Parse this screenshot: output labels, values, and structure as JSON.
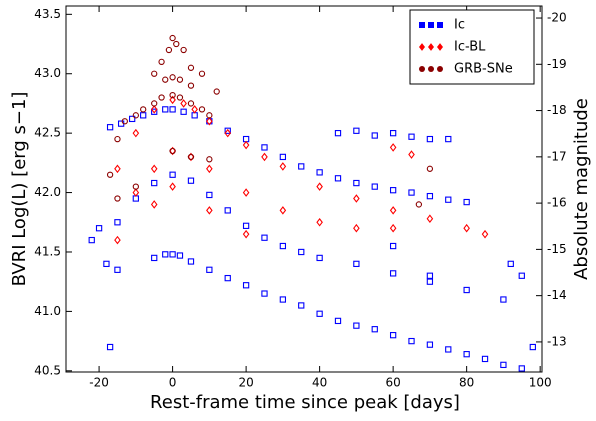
{
  "chart_data": {
    "type": "scatter",
    "xlabel": "Rest-frame time since peak [days]",
    "ylabel": "BVRI Log(L) [erg s−1]",
    "y2label": "Absolute magnitude",
    "xlim": [
      -29,
      100.5
    ],
    "xticks": [
      -20,
      0,
      20,
      40,
      60,
      80,
      100
    ],
    "ylim": [
      40.49,
      43.57
    ],
    "yticks": [
      40.5,
      {
        "value": 41,
        "label": "41.0"
      },
      41.5,
      {
        "value": 42,
        "label": "42.0"
      },
      42.5,
      {
        "value": 43,
        "label": "43.0"
      },
      43.5
    ],
    "y2lim": [
      -12.35,
      -20.26
    ],
    "y2ticks": [
      -13,
      -14,
      -15,
      -16,
      -17,
      -18,
      -19,
      -20
    ],
    "legend": "upper right",
    "series": [
      {
        "name": "Ic",
        "color": "#0000ff",
        "marker": "square",
        "x": [
          -17,
          -14,
          -11,
          -8,
          -5,
          -2,
          0,
          3,
          6,
          10,
          15,
          20,
          25,
          30,
          35,
          40,
          45,
          50,
          55,
          60,
          65,
          70,
          75,
          80,
          -15,
          -10,
          -5,
          0,
          5,
          10,
          15,
          20,
          25,
          30,
          35,
          40,
          50,
          60,
          70,
          80,
          90,
          -5,
          -2,
          0,
          2,
          5,
          10,
          15,
          20,
          25,
          30,
          35,
          40,
          45,
          50,
          55,
          60,
          65,
          70,
          75,
          80,
          85,
          90,
          95,
          45,
          50,
          55,
          60,
          65,
          70,
          75,
          -22,
          -20,
          -18,
          -17,
          -15,
          92,
          95,
          98,
          60,
          70
        ],
        "y": [
          42.55,
          42.58,
          42.62,
          42.65,
          42.68,
          42.7,
          42.7,
          42.68,
          42.65,
          42.6,
          42.52,
          42.45,
          42.38,
          42.3,
          42.22,
          42.17,
          42.12,
          42.08,
          42.05,
          42.02,
          42.0,
          41.97,
          41.94,
          41.92,
          41.75,
          41.95,
          42.08,
          42.15,
          42.1,
          41.98,
          41.85,
          41.72,
          41.62,
          41.55,
          41.5,
          41.45,
          41.4,
          41.32,
          41.25,
          41.18,
          41.1,
          41.45,
          41.48,
          41.48,
          41.47,
          41.42,
          41.35,
          41.28,
          41.22,
          41.15,
          41.1,
          41.05,
          40.98,
          40.92,
          40.88,
          40.85,
          40.8,
          40.75,
          40.72,
          40.68,
          40.64,
          40.6,
          40.55,
          40.52,
          42.5,
          42.52,
          42.48,
          42.5,
          42.47,
          42.45,
          42.45,
          41.6,
          41.7,
          41.4,
          40.7,
          41.35,
          41.4,
          41.3,
          40.7,
          41.55,
          41.3
        ]
      },
      {
        "name": "Ic-BL",
        "color": "#ff0000",
        "marker": "diamond",
        "x": [
          -15,
          -10,
          -5,
          0,
          3,
          6,
          10,
          15,
          20,
          25,
          30,
          40,
          50,
          60,
          70,
          80,
          85,
          -10,
          -5,
          0,
          5,
          10,
          20,
          30,
          40,
          50,
          60,
          -15,
          -5,
          0,
          10,
          20,
          60,
          65
        ],
        "y": [
          42.2,
          42.5,
          42.7,
          42.78,
          42.75,
          42.7,
          42.6,
          42.5,
          42.4,
          42.3,
          42.22,
          42.05,
          41.95,
          41.85,
          41.78,
          41.7,
          41.65,
          42.0,
          42.2,
          42.35,
          42.3,
          42.2,
          42.0,
          41.85,
          41.75,
          41.7,
          41.7,
          41.6,
          41.9,
          42.05,
          41.85,
          41.65,
          42.38,
          42.32
        ]
      },
      {
        "name": "GRB-SNe",
        "color": "#8b0000",
        "marker": "circle",
        "x": [
          -17,
          -15,
          -13,
          -10,
          -8,
          -5,
          -3,
          0,
          2,
          5,
          8,
          10,
          -5,
          -3,
          -1,
          0,
          1,
          3,
          5,
          8,
          12,
          -2,
          0,
          2,
          5,
          -15,
          -10,
          0,
          5,
          10,
          67,
          70
        ],
        "y": [
          42.15,
          42.45,
          42.6,
          42.65,
          42.7,
          42.75,
          42.8,
          42.82,
          42.8,
          42.75,
          42.7,
          42.65,
          43.0,
          43.1,
          43.2,
          43.3,
          43.25,
          43.2,
          43.05,
          43.0,
          42.85,
          42.95,
          42.97,
          42.95,
          42.9,
          41.95,
          42.05,
          42.35,
          42.3,
          42.28,
          41.9,
          42.2
        ]
      }
    ]
  }
}
